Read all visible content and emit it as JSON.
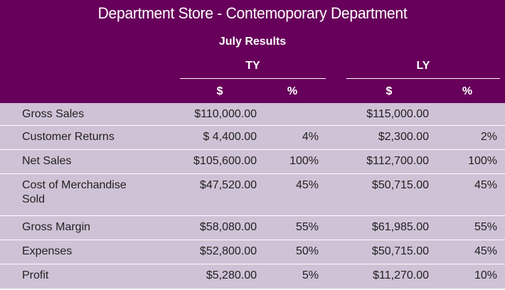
{
  "header": {
    "title": "Department Store - Contemoporary Department",
    "subtitle": "July Results",
    "groups": {
      "ty": "TY",
      "ly": "LY"
    },
    "columns": {
      "ty_dollar": "$",
      "ty_pct": "%",
      "ly_dollar": "$",
      "ly_pct": "%"
    }
  },
  "rows": [
    {
      "label": "Gross Sales",
      "ty_dollar": "$110,000.00",
      "ty_pct": "",
      "ly_dollar": "$115,000.00",
      "ly_pct": ""
    },
    {
      "label": "Customer Returns",
      "ty_dollar": "$ 4,400.00",
      "ty_pct": "4%",
      "ly_dollar": "$2,300.00",
      "ly_pct": "2%"
    },
    {
      "label": "Net Sales",
      "ty_dollar": "$105,600.00",
      "ty_pct": "100%",
      "ly_dollar": "$112,700.00",
      "ly_pct": "100%"
    },
    {
      "label": "Cost of Merchandise Sold",
      "ty_dollar": "$47,520.00",
      "ty_pct": "45%",
      "ly_dollar": "$50,715.00",
      "ly_pct": "45%"
    },
    {
      "label": "Gross Margin",
      "ty_dollar": "$58,080.00",
      "ty_pct": "55%",
      "ly_dollar": "$61,985.00",
      "ly_pct": "55%"
    },
    {
      "label": "Expenses",
      "ty_dollar": "$52,800.00",
      "ty_pct": "50%",
      "ly_dollar": "$50,715.00",
      "ly_pct": "45%"
    },
    {
      "label": "Profit",
      "ty_dollar": "$5,280.00",
      "ty_pct": "5%",
      "ly_dollar": "$11,270.00",
      "ly_pct": "10%"
    }
  ],
  "colors": {
    "header_bg": "#67005a",
    "body_bg": "#cfc2d6",
    "divider": "#ffffff"
  }
}
